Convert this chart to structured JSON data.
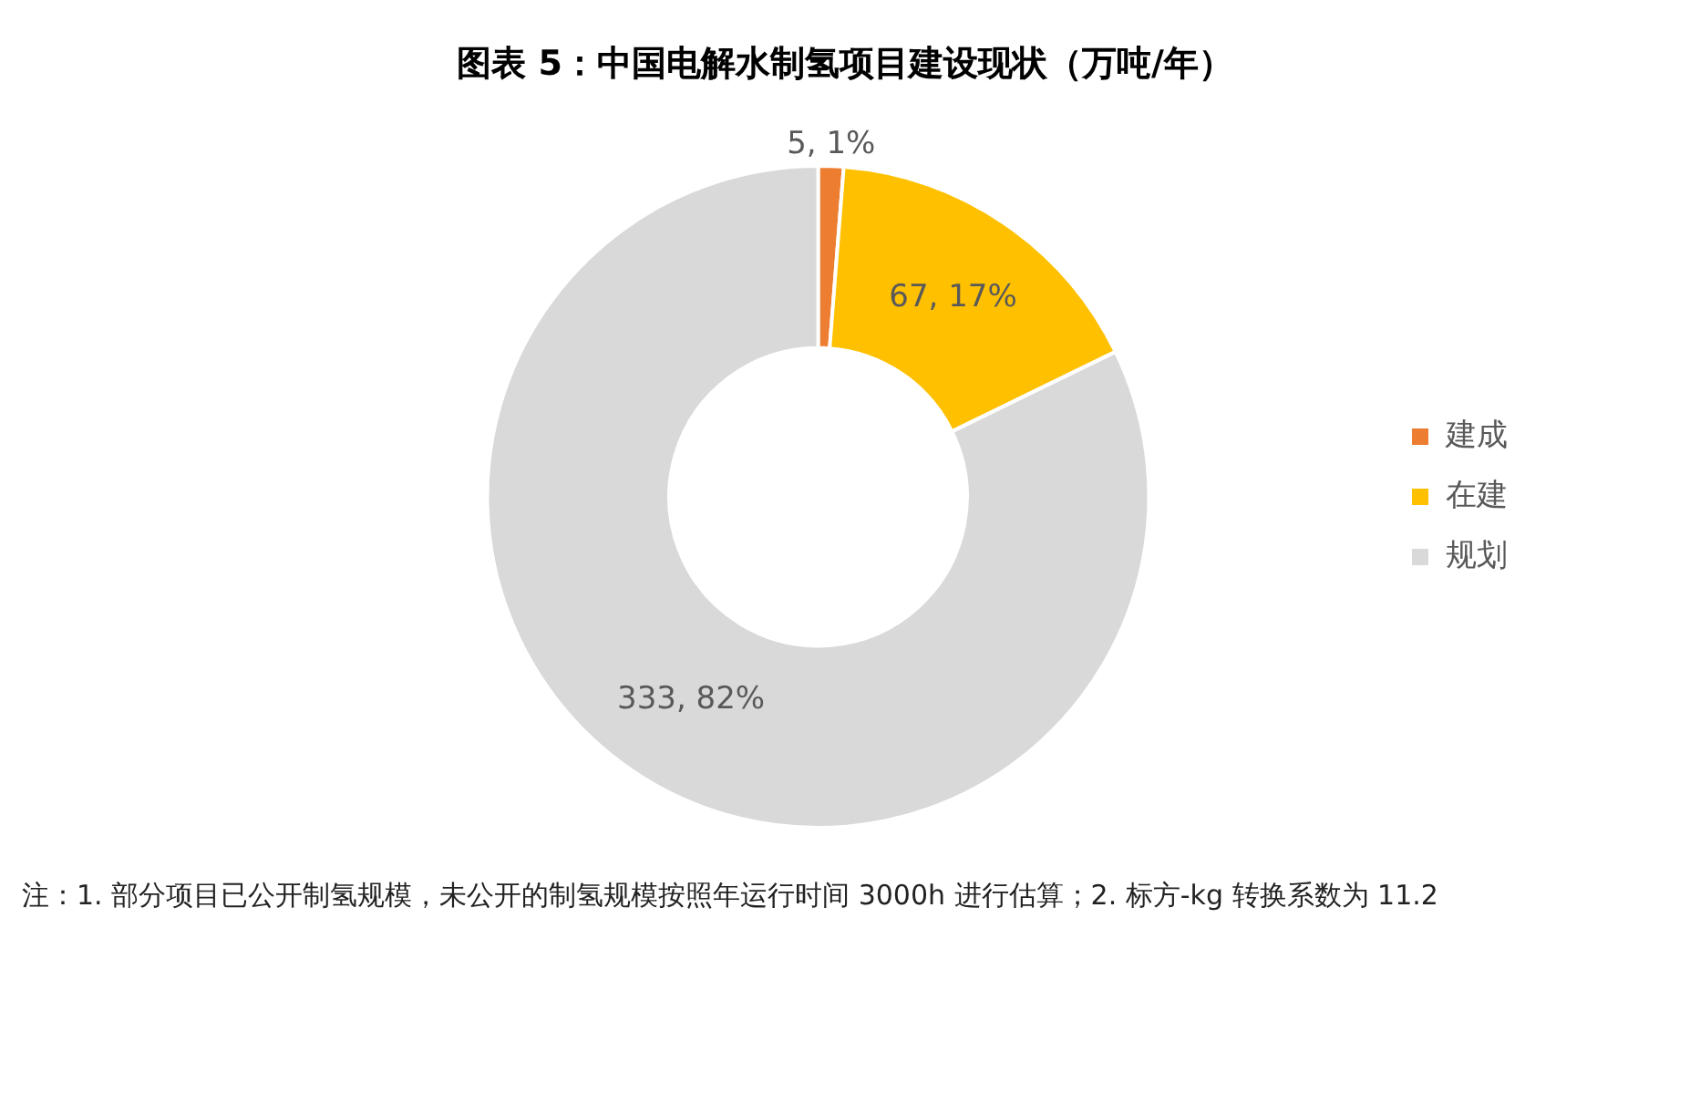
{
  "chart_data": {
    "type": "donut",
    "title": "图表 5：中国电解水制氢项目建设现状（万吨/年）",
    "categories": [
      "建成",
      "在建",
      "规划"
    ],
    "values": [
      5,
      67,
      333
    ],
    "colors": [
      "#ed7d31",
      "#ffc000",
      "#d9d9d9"
    ],
    "value_labels": [
      "5, 1%",
      "67, 17%",
      "333, 82%"
    ],
    "legend": "right",
    "annotations": [
      "注：1. 部分项目已公开制氢规模，未公开的制氢规模按照年运行时间 3000h 进行估算；2. 标方-kg 转换系数为 11.2"
    ]
  }
}
